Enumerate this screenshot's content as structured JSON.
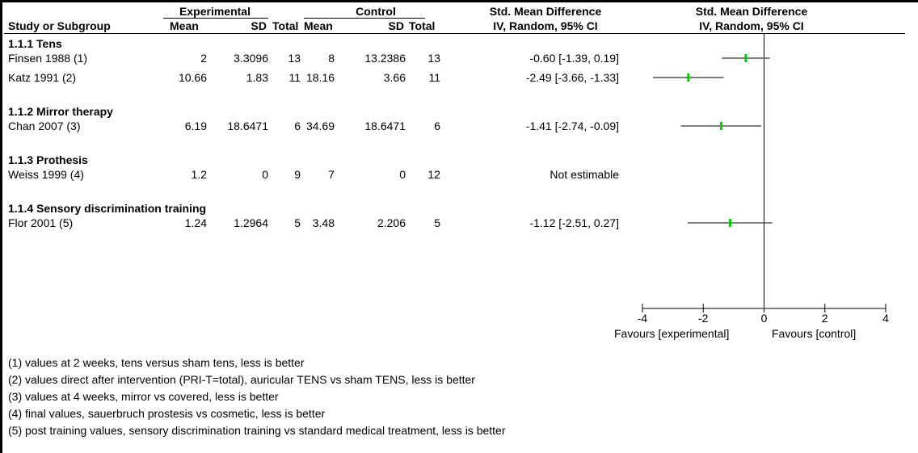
{
  "header": {
    "experimental": "Experimental",
    "control": "Control",
    "smd": "Std. Mean Difference",
    "smd_method": "IV, Random, 95% CI",
    "plot_title": "Std. Mean Difference",
    "plot_method": "IV, Random, 95% CI",
    "cols": {
      "study": "Study or Subgroup",
      "exp_mean": "Mean",
      "exp_sd": "SD",
      "exp_total": "Total",
      "ctl_mean": "Mean",
      "ctl_sd": "SD",
      "ctl_total": "Total"
    }
  },
  "subgroups": [
    {
      "title": "1.1.1 Tens",
      "studies": [
        {
          "name": "Finsen 1988 (1)",
          "exp_mean": "2",
          "exp_sd": "3.3096",
          "exp_total": "13",
          "ctl_mean": "8",
          "ctl_sd": "13.2386",
          "ctl_total": "13",
          "effect": "-0.60 [-1.39, 0.19]"
        },
        {
          "name": "Katz 1991 (2)",
          "exp_mean": "10.66",
          "exp_sd": "1.83",
          "exp_total": "11",
          "ctl_mean": "18.16",
          "ctl_sd": "3.66",
          "ctl_total": "11",
          "effect": "-2.49 [-3.66, -1.33]"
        }
      ]
    },
    {
      "title": "1.1.2 Mirror therapy",
      "studies": [
        {
          "name": "Chan 2007 (3)",
          "exp_mean": "6.19",
          "exp_sd": "18.6471",
          "exp_total": "6",
          "ctl_mean": "34.69",
          "ctl_sd": "18.6471",
          "ctl_total": "6",
          "effect": "-1.41 [-2.74, -0.09]"
        }
      ]
    },
    {
      "title": "1.1.3 Prothesis",
      "studies": [
        {
          "name": "Weiss 1999 (4)",
          "exp_mean": "1.2",
          "exp_sd": "0",
          "exp_total": "9",
          "ctl_mean": "7",
          "ctl_sd": "0",
          "ctl_total": "12",
          "effect": "Not estimable"
        }
      ]
    },
    {
      "title": "1.1.4 Sensory discrimination training",
      "studies": [
        {
          "name": "Flor 2001 (5)",
          "exp_mean": "1.24",
          "exp_sd": "1.2964",
          "exp_total": "5",
          "ctl_mean": "3.48",
          "ctl_sd": "2.206",
          "ctl_total": "5",
          "effect": "-1.12 [-2.51, 0.27]"
        }
      ]
    }
  ],
  "axis_labels": {
    "left": "Favours [experimental]",
    "right": "Favours [control]"
  },
  "footnotes": [
    "(1) values at 2 weeks, tens versus sham tens, less is better",
    "(2) values direct after intervention (PRI-T=total), auricular TENS vs sham TENS, less is better",
    "(3) values at 4 weeks, mirror vs covered, less is better",
    "(4) final values, sauerbruch prostesis vs cosmetic, less is better",
    "(5) post training values, sensory discrimination training vs standard medical treatment, less is better"
  ],
  "colors": {
    "point": "#00cc00",
    "line": "#000000"
  },
  "chart_data": {
    "type": "forest",
    "xlim": [
      -4,
      4
    ],
    "ticks": [
      -4,
      -2,
      0,
      2,
      4
    ],
    "tick_labels": [
      "-4",
      "-2",
      "0",
      "2",
      "4"
    ],
    "points": [
      {
        "study": "Finsen 1988 (1)",
        "estimate": -0.6,
        "lower": -1.39,
        "upper": 0.19
      },
      {
        "study": "Katz 1991 (2)",
        "estimate": -2.49,
        "lower": -3.66,
        "upper": -1.33
      },
      {
        "study": "Chan 2007 (3)",
        "estimate": -1.41,
        "lower": -2.74,
        "upper": -0.09
      },
      {
        "study": "Weiss 1999 (4)",
        "estimate": null,
        "lower": null,
        "upper": null
      },
      {
        "study": "Flor 2001 (5)",
        "estimate": -1.12,
        "lower": -2.51,
        "upper": 0.27
      }
    ]
  }
}
